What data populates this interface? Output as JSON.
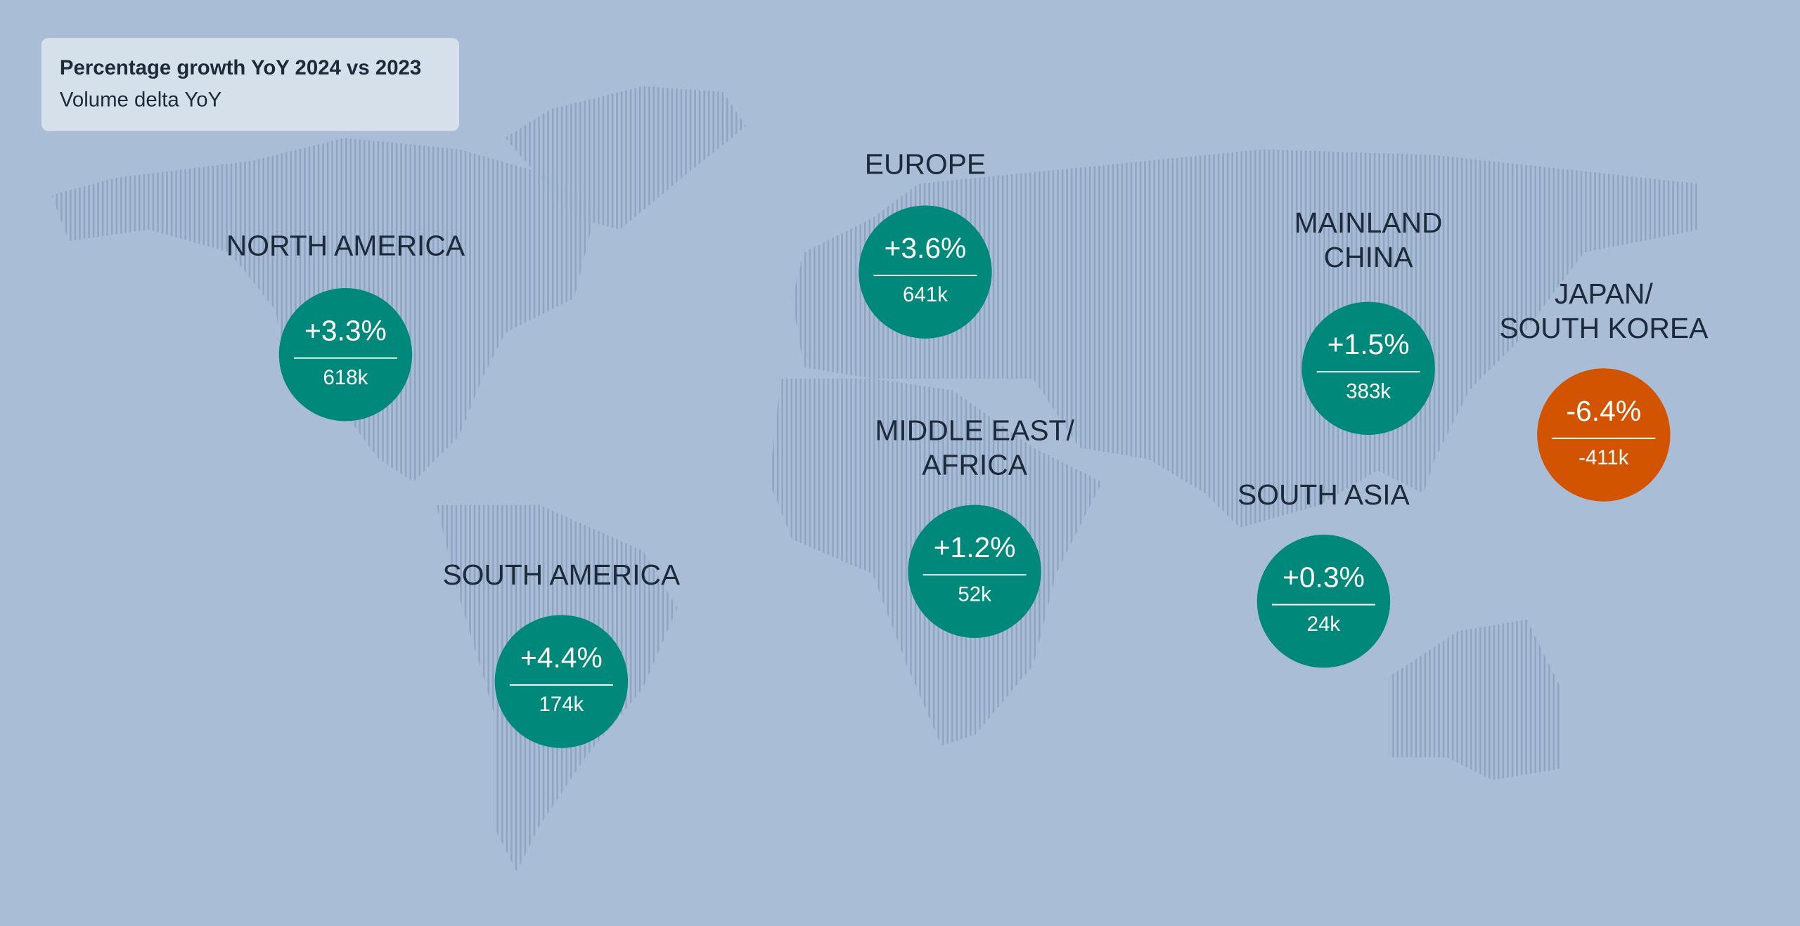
{
  "legend": {
    "title": "Percentage growth YoY 2024 vs 2023",
    "subtitle": "Volume delta YoY"
  },
  "regions": [
    {
      "name_lines": [
        "NORTH AMERICA"
      ],
      "growth": "+3.3%",
      "volume": "618k",
      "color": "#00897b"
    },
    {
      "name_lines": [
        "SOUTH AMERICA"
      ],
      "growth": "+4.4%",
      "volume": "174k",
      "color": "#00897b"
    },
    {
      "name_lines": [
        "EUROPE"
      ],
      "growth": "+3.6%",
      "volume": "641k",
      "color": "#00897b"
    },
    {
      "name_lines": [
        "MIDDLE EAST/",
        "AFRICA"
      ],
      "growth": "+1.2%",
      "volume": "52k",
      "color": "#00897b"
    },
    {
      "name_lines": [
        "MAINLAND",
        "CHINA"
      ],
      "growth": "+1.5%",
      "volume": "383k",
      "color": "#00897b"
    },
    {
      "name_lines": [
        "SOUTH ASIA"
      ],
      "growth": "+0.3%",
      "volume": "24k",
      "color": "#00897b"
    },
    {
      "name_lines": [
        "JAPAN/",
        "SOUTH KOREA"
      ],
      "growth": "-6.4%",
      "volume": "-411k",
      "color": "#d35400"
    }
  ]
}
